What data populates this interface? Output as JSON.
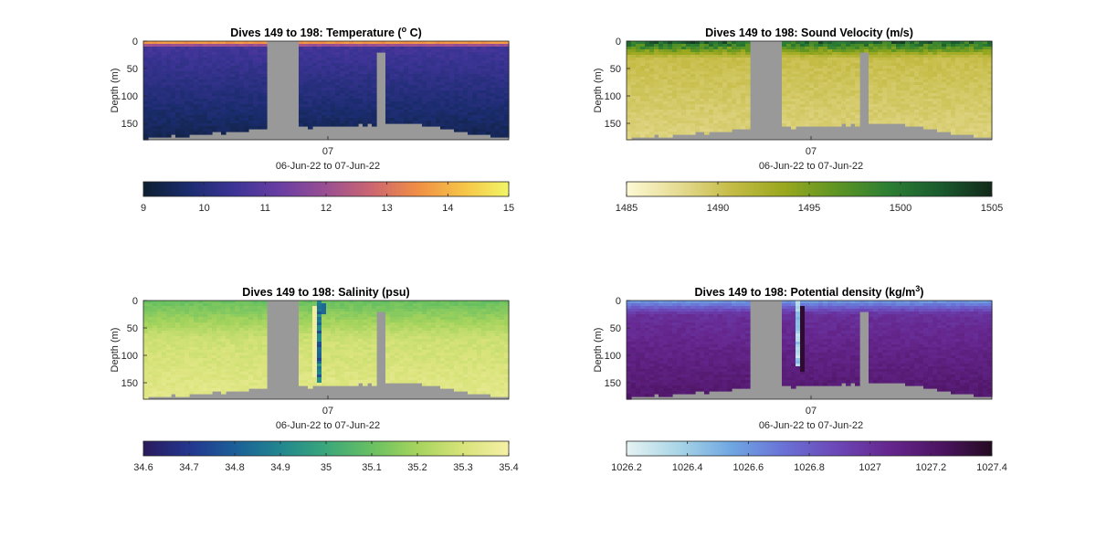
{
  "figure": {
    "background": "#ffffff"
  },
  "chart_data": [
    {
      "type": "heatmap",
      "title": "Dives 149 to 198: Temperature (",
      "title_super": "o",
      "title_end": " C)",
      "ylabel": "Depth (m)",
      "yticks": [
        0,
        50,
        100,
        150
      ],
      "ylim": [
        180,
        0
      ],
      "xtick": "07",
      "xlabel": "06-Jun-22 to 07-Jun-22",
      "colorbar": {
        "range": [
          9,
          15
        ],
        "ticks": [
          "9",
          "10",
          "11",
          "12",
          "13",
          "14",
          "15"
        ],
        "colors": [
          "#0d1f30",
          "#1b2c6f",
          "#3d3496",
          "#6a3ea3",
          "#9a4f92",
          "#cc6670",
          "#f08e45",
          "#f6c447",
          "#f1f566"
        ]
      },
      "profile_mode": "temperature",
      "nan_color": "#999999"
    },
    {
      "type": "heatmap",
      "title": "Dives 149 to 198: Sound Velocity (m/s)",
      "ylabel": "Depth (m)",
      "yticks": [
        0,
        50,
        100,
        150
      ],
      "ylim": [
        180,
        0
      ],
      "xtick": "07",
      "xlabel": "06-Jun-22 to 07-Jun-22",
      "colorbar": {
        "range": [
          1485,
          1505
        ],
        "ticks": [
          "1485",
          "1490",
          "1495",
          "1500",
          "1505"
        ],
        "colors": [
          "#fdf9d4",
          "#e6db93",
          "#c5bc47",
          "#9aa81e",
          "#5f9523",
          "#2d7f33",
          "#1a5b2e",
          "#12291a"
        ]
      },
      "profile_mode": "soundvel",
      "nan_color": "#999999"
    },
    {
      "type": "heatmap",
      "title": "Dives 149 to 198: Salinity (psu)",
      "ylabel": "Depth (m)",
      "yticks": [
        0,
        50,
        100,
        150
      ],
      "ylim": [
        180,
        0
      ],
      "xtick": "07",
      "xlabel": "06-Jun-22 to 07-Jun-22",
      "colorbar": {
        "range": [
          34.6,
          35.4
        ],
        "ticks": [
          "34.6",
          "34.7",
          "34.8",
          "34.9",
          "35",
          "35.1",
          "35.2",
          "35.3",
          "35.4"
        ],
        "colors": [
          "#2a1a5c",
          "#23368f",
          "#1b5f98",
          "#22868f",
          "#3ba77b",
          "#68c061",
          "#a6d45d",
          "#d8e37a",
          "#f6f0a6"
        ]
      },
      "profile_mode": "salinity",
      "nan_color": "#999999"
    },
    {
      "type": "heatmap",
      "title": "Dives 149 to 198: Potential density (kg/m",
      "title_super": "3",
      "title_end": ")",
      "ylabel": "Depth (m)",
      "yticks": [
        0,
        50,
        100,
        150
      ],
      "ylim": [
        180,
        0
      ],
      "xtick": "07",
      "xlabel": "06-Jun-22 to 07-Jun-22",
      "colorbar": {
        "range": [
          1026.2,
          1027.4
        ],
        "ticks": [
          "1026.2",
          "1026.4",
          "1026.6",
          "1026.8",
          "1027",
          "1027.2",
          "1027.4"
        ],
        "colors": [
          "#e6f3f3",
          "#a8d5e6",
          "#6fa7e2",
          "#6a72d6",
          "#6c48b8",
          "#66278f",
          "#4d1463",
          "#240a22"
        ]
      },
      "profile_mode": "density",
      "nan_color": "#999999"
    }
  ]
}
